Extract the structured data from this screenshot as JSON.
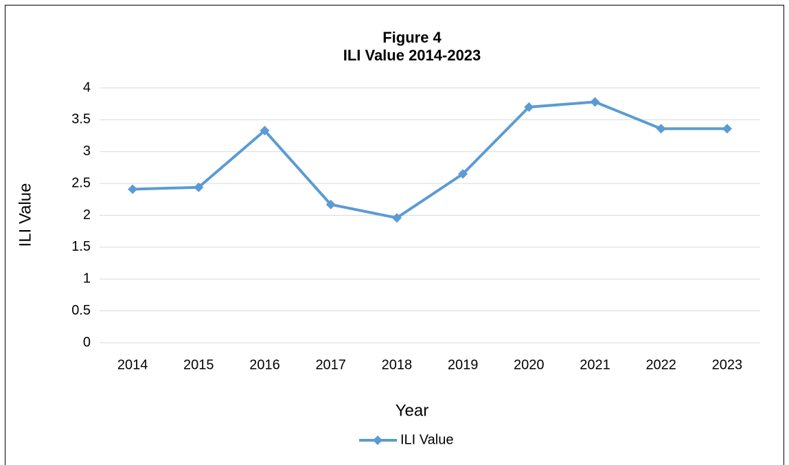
{
  "chart_data": {
    "type": "line",
    "title": "Figure 4",
    "subtitle": "ILI Value 2014-2023",
    "x_label": "Year",
    "y_label": "ILI Value",
    "categories": [
      "2014",
      "2015",
      "2016",
      "2017",
      "2018",
      "2019",
      "2020",
      "2021",
      "2022",
      "2023"
    ],
    "series": [
      {
        "name": "ILI Value",
        "color": "#5b9bd5",
        "values": [
          2.41,
          2.44,
          3.33,
          2.17,
          1.96,
          2.65,
          3.7,
          3.78,
          3.36,
          3.36
        ]
      }
    ],
    "ylim": [
      0,
      4
    ],
    "yticks": [
      0,
      0.5,
      1,
      1.5,
      2,
      2.5,
      3,
      3.5,
      4
    ],
    "grid": true,
    "legend": "bottom"
  }
}
